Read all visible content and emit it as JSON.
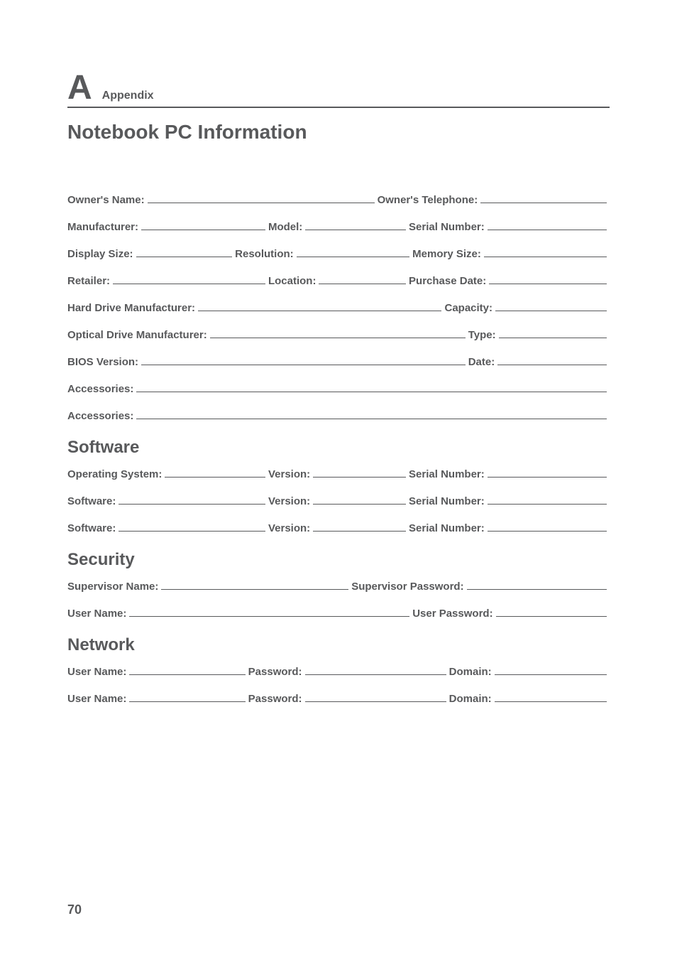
{
  "header": {
    "letter": "A",
    "word": "Appendix"
  },
  "title": "Notebook PC Information",
  "sections": {
    "software": "Software",
    "security": "Security",
    "network": "Network"
  },
  "labels": {
    "owners_name": "Owner's Name:",
    "owners_telephone": "Owner's Telephone:",
    "manufacturer": "Manufacturer:",
    "model": "Model:",
    "serial_number": "Serial Number:",
    "display_size": "Display Size:",
    "resolution": "Resolution:",
    "memory_size": "Memory Size:",
    "retailer": "Retailer:",
    "location": "Location:",
    "purchase_date": "Purchase Date:",
    "hard_drive_mfr": "Hard Drive Manufacturer:",
    "capacity": "Capacity:",
    "optical_drive_mfr": "Optical Drive Manufacturer:",
    "type": "Type:",
    "bios_version": "BIOS Version:",
    "date": "Date:",
    "accessories": "Accessories:",
    "operating_system": "Operating System:",
    "version": "Version:",
    "software": "Software:",
    "supervisor_name": "Supervisor Name:",
    "supervisor_password": "Supervisor Password:",
    "user_name": "User Name:",
    "user_password": "User Password:",
    "password": "Password:",
    "domain": "Domain:"
  },
  "page_number": "70"
}
